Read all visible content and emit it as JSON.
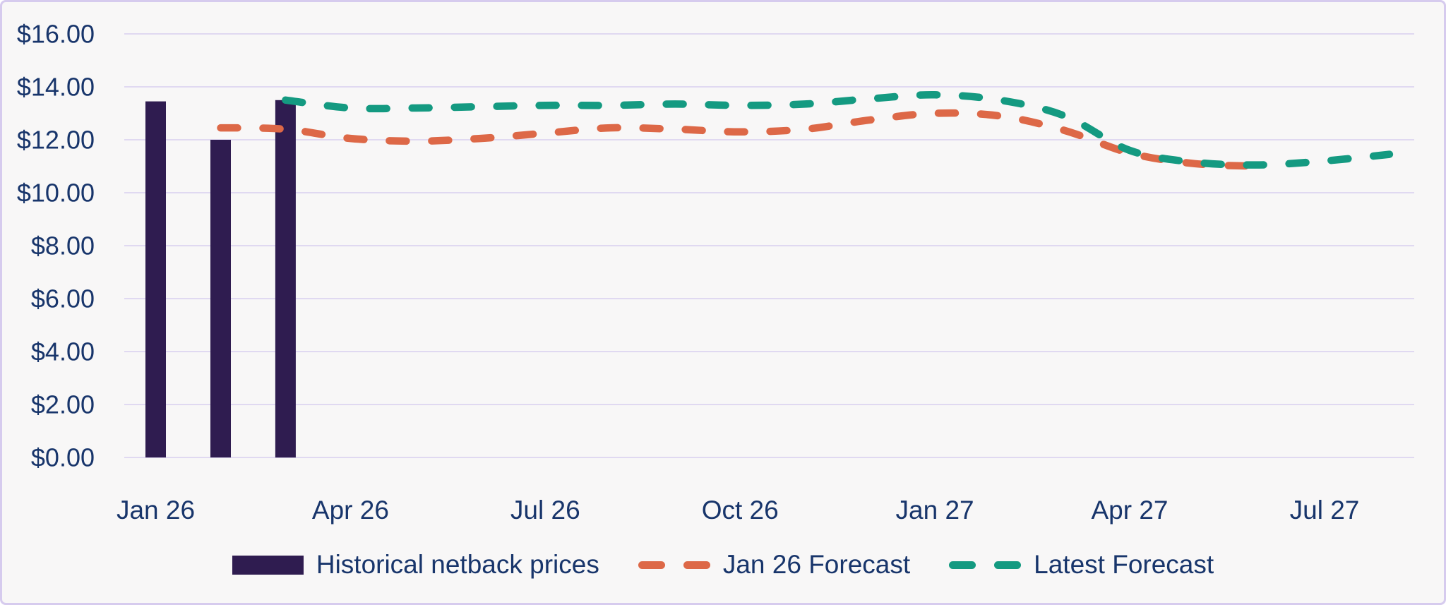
{
  "panel": {
    "background": "#f8f7f7",
    "border_color": "#d6cbee"
  },
  "chart_data": {
    "type": "combo",
    "title": "",
    "xlabel": "",
    "ylabel": "",
    "ylim": [
      0,
      16
    ],
    "grid": "horizontal",
    "legend_position": "bottom",
    "colors": {
      "axis_text": "#18356b",
      "gridline": "#e0d9f1"
    },
    "x": [
      "Jan 26",
      "Feb 26",
      "Mar 26",
      "Apr 26",
      "May 26",
      "Jun 26",
      "Jul 26",
      "Aug 26",
      "Sep 26",
      "Oct 26",
      "Nov 26",
      "Dec 26",
      "Jan 27",
      "Feb 27",
      "Mar 27",
      "Apr 27",
      "May 27",
      "Jun 27",
      "Jul 27",
      "Aug 27"
    ],
    "x_axis": {
      "ticks": [
        {
          "label": "Jan 26",
          "index": 0
        },
        {
          "label": "Apr 26",
          "index": 3
        },
        {
          "label": "Jul 26",
          "index": 6
        },
        {
          "label": "Oct 26",
          "index": 9
        },
        {
          "label": "Jan 27",
          "index": 12
        },
        {
          "label": "Apr 27",
          "index": 15
        },
        {
          "label": "Jul 27",
          "index": 18
        }
      ]
    },
    "y_axis": {
      "ticks": [
        {
          "label": "$16.00",
          "value": 16
        },
        {
          "label": "$14.00",
          "value": 14
        },
        {
          "label": "$12.00",
          "value": 12
        },
        {
          "label": "$10.00",
          "value": 10
        },
        {
          "label": "$8.00",
          "value": 8
        },
        {
          "label": "$6.00",
          "value": 6
        },
        {
          "label": "$4.00",
          "value": 4
        },
        {
          "label": "$2.00",
          "value": 2
        },
        {
          "label": "$0.00",
          "value": 0
        }
      ]
    },
    "series": [
      {
        "name": "Historical netback prices",
        "type": "bar",
        "color": "#2f1c50",
        "values": [
          13.45,
          12.0,
          13.5,
          null,
          null,
          null,
          null,
          null,
          null,
          null,
          null,
          null,
          null,
          null,
          null,
          null,
          null,
          null,
          null,
          null
        ]
      },
      {
        "name": "Jan 26 Forecast",
        "type": "line",
        "dashed": true,
        "color": "#dd6847",
        "values": [
          null,
          12.45,
          12.4,
          12.05,
          11.95,
          12.05,
          12.25,
          12.45,
          12.4,
          12.3,
          12.4,
          12.75,
          13.0,
          12.9,
          12.35,
          11.5,
          11.1,
          11.0,
          null,
          null
        ]
      },
      {
        "name": "Latest Forecast",
        "type": "line",
        "dashed": true,
        "color": "#149a81",
        "values": [
          null,
          null,
          13.5,
          13.2,
          13.2,
          13.25,
          13.3,
          13.3,
          13.35,
          13.3,
          13.35,
          13.55,
          13.7,
          13.5,
          12.9,
          11.6,
          11.15,
          11.05,
          11.2,
          11.45
        ]
      }
    ]
  }
}
